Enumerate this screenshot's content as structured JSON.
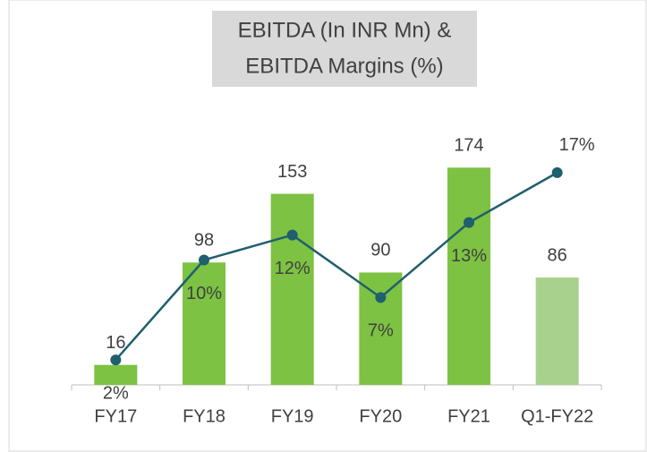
{
  "chart_data": {
    "type": "bar-line",
    "title": [
      "EBITDA (In INR Mn) &",
      "EBITDA Margins (%)"
    ],
    "categories": [
      "FY17",
      "FY18",
      "FY19",
      "FY20",
      "FY21",
      "Q1-FY22"
    ],
    "series": [
      {
        "name": "EBITDA (In INR Mn)",
        "type": "bar",
        "color": "#7dc242",
        "colors": [
          "#7dc242",
          "#7dc242",
          "#7dc242",
          "#7dc242",
          "#7dc242",
          "#a9d18e"
        ],
        "values": [
          16,
          98,
          153,
          90,
          174,
          86
        ]
      },
      {
        "name": "EBITDA Margins (%)",
        "type": "line",
        "axis": "y2",
        "color": "#1f5f6e",
        "values": [
          2,
          10,
          12,
          7,
          13,
          17
        ],
        "value_labels": [
          "2%",
          "10%",
          "12%",
          "7%",
          "13%",
          "17%"
        ]
      }
    ],
    "ylim": [
      0,
      200
    ],
    "y2lim": [
      0,
      20
    ],
    "grid": false,
    "legend": false
  }
}
